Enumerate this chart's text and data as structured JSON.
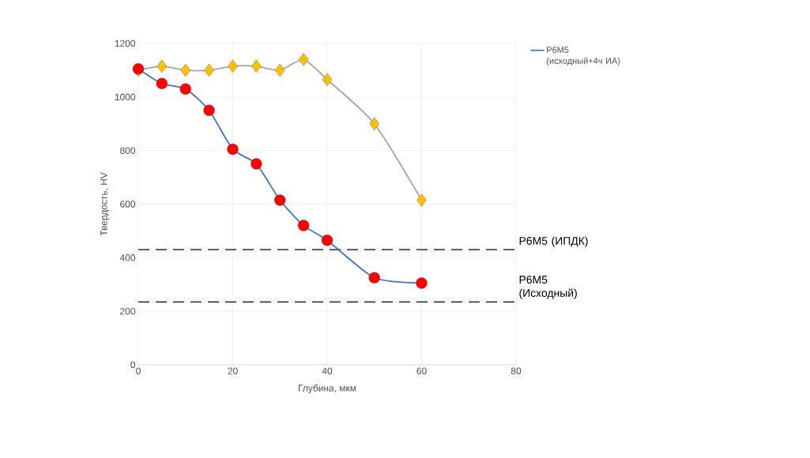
{
  "chart_data": {
    "type": "line",
    "xlabel": "Глубина, мкм",
    "ylabel": "Твердость, HV",
    "xlim": [
      0,
      80
    ],
    "xticks": [
      0,
      20,
      40,
      60,
      80
    ],
    "ylim": [
      0,
      1200
    ],
    "yticks": [
      0,
      200,
      400,
      600,
      800,
      1000,
      1200
    ],
    "grid": true,
    "legend": "top right",
    "series": [
      {
        "name": "Р6М5 (исходный+4ч ИА)",
        "color": "#4472c4",
        "colors": [
          "#ff0000",
          "#ff0000",
          "#ff0000",
          "#ff0000",
          "#ff0000",
          "#ff0000",
          "#ff0000",
          "#ff0000",
          "#ff0000",
          "#ff0000",
          "#ff0000"
        ],
        "marker": "circle",
        "x": [
          0,
          5,
          10,
          15,
          20,
          25,
          30,
          35,
          40,
          50,
          60
        ],
        "values": [
          1105,
          1050,
          1030,
          950,
          805,
          750,
          615,
          520,
          465,
          325,
          305
        ]
      },
      {
        "color": "#a5a5a5",
        "colors": [
          "#ffc000",
          "#ffc000",
          "#ffc000",
          "#ffc000",
          "#ffc000",
          "#ffc000",
          "#ffc000",
          "#ffc000",
          "#ffc000",
          "#ffc000",
          "#ffc000"
        ],
        "marker": "diamond",
        "x": [
          0,
          5,
          10,
          15,
          20,
          25,
          30,
          35,
          40,
          50,
          60
        ],
        "values": [
          1100,
          1115,
          1100,
          1100,
          1115,
          1115,
          1100,
          1140,
          1065,
          900,
          615
        ]
      }
    ],
    "ref_lines": [
      {
        "axis": "y",
        "value": 430,
        "label": "Р6М5 (ИПДК)",
        "color": "#000000",
        "line_style": "dashed"
      },
      {
        "axis": "y",
        "value": 235,
        "label": "Р6М5 (Исходный)",
        "color": "#000000",
        "line_style": "dashed"
      }
    ]
  }
}
